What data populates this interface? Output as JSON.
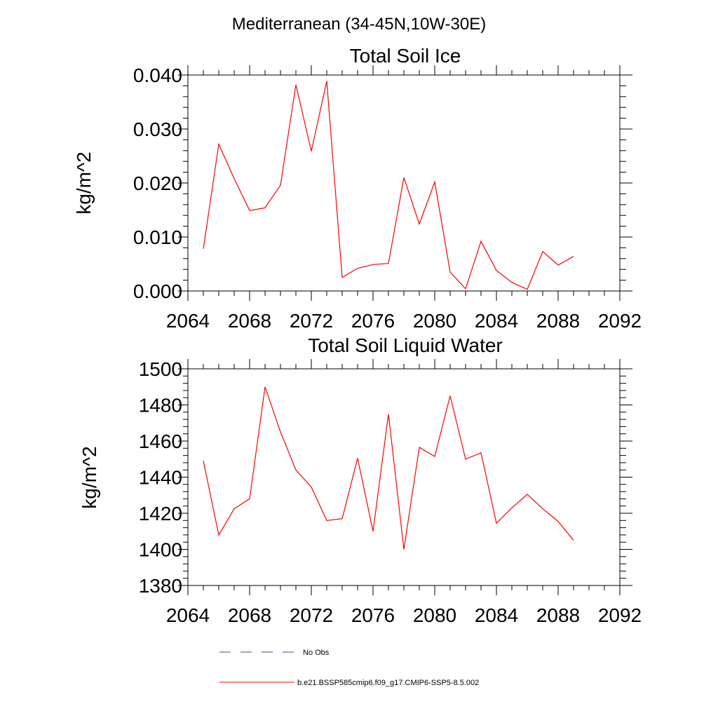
{
  "page_title": "Mediterranean (34-45N,10W-30E)",
  "chart_data": [
    {
      "type": "line",
      "title": "Total Soil Ice",
      "xlabel": "",
      "ylabel": "kg/m^2",
      "xlim": [
        2064,
        2092
      ],
      "ylim": [
        0.0,
        0.04
      ],
      "x_ticks": [
        2064,
        2068,
        2072,
        2076,
        2080,
        2084,
        2088,
        2092
      ],
      "x_tick_labels": [
        "2064",
        "2068",
        "2072",
        "2076",
        "2080",
        "2084",
        "2088",
        "2092"
      ],
      "y_ticks": [
        0.0,
        0.01,
        0.02,
        0.03,
        0.04
      ],
      "y_tick_labels": [
        "0.000",
        "0.010",
        "0.020",
        "0.030",
        "0.040"
      ],
      "grid": false,
      "series": [
        {
          "color": "#ff0000",
          "x": [
            2065,
            2066,
            2067,
            2068,
            2069,
            2070,
            2071,
            2072,
            2073,
            2074,
            2075,
            2076,
            2077,
            2078,
            2079,
            2080,
            2081,
            2082,
            2083,
            2084,
            2085,
            2086,
            2087,
            2088,
            2089
          ],
          "values": [
            0.0078,
            0.0272,
            0.0208,
            0.0149,
            0.0154,
            0.0196,
            0.0382,
            0.0259,
            0.0389,
            0.0025,
            0.0042,
            0.0049,
            0.0051,
            0.021,
            0.0124,
            0.0202,
            0.0035,
            0.0004,
            0.0092,
            0.0038,
            0.0016,
            0.0003,
            0.0073,
            0.0048,
            0.0064
          ]
        }
      ]
    },
    {
      "type": "line",
      "title": "Total Soil Liquid Water",
      "xlabel": "",
      "ylabel": "kg/m^2",
      "xlim": [
        2064,
        2092
      ],
      "ylim": [
        1380,
        1500
      ],
      "x_ticks": [
        2064,
        2068,
        2072,
        2076,
        2080,
        2084,
        2088,
        2092
      ],
      "x_tick_labels": [
        "2064",
        "2068",
        "2072",
        "2076",
        "2080",
        "2084",
        "2088",
        "2092"
      ],
      "y_ticks": [
        1380,
        1400,
        1420,
        1440,
        1460,
        1480,
        1500
      ],
      "y_tick_labels": [
        "1380",
        "1400",
        "1420",
        "1440",
        "1460",
        "1480",
        "1500"
      ],
      "grid": false,
      "series": [
        {
          "color": "#ff0000",
          "x": [
            2065,
            2066,
            2067,
            2068,
            2069,
            2070,
            2071,
            2072,
            2073,
            2074,
            2075,
            2076,
            2077,
            2078,
            2079,
            2080,
            2081,
            2082,
            2083,
            2084,
            2085,
            2086,
            2087,
            2088,
            2089
          ],
          "values": [
            1449.0,
            1408.0,
            1422.5,
            1428.0,
            1490.0,
            1465.0,
            1444.0,
            1434.5,
            1416.0,
            1417.0,
            1450.5,
            1410.0,
            1475.0,
            1400.0,
            1456.5,
            1451.5,
            1485.0,
            1450.0,
            1453.5,
            1414.5,
            1423.0,
            1430.5,
            1422.5,
            1415.5,
            1405.0
          ]
        }
      ]
    }
  ],
  "legend": {
    "position": "bottom",
    "entries": [
      {
        "label": "No Obs",
        "color": "#3b4a8c",
        "style": "dashed"
      },
      {
        "label": "b.e21.BSSP585cmip6.f09_g17.CMIP6-SSP5-8.5.002",
        "color": "#ff0000",
        "style": "solid"
      }
    ]
  }
}
